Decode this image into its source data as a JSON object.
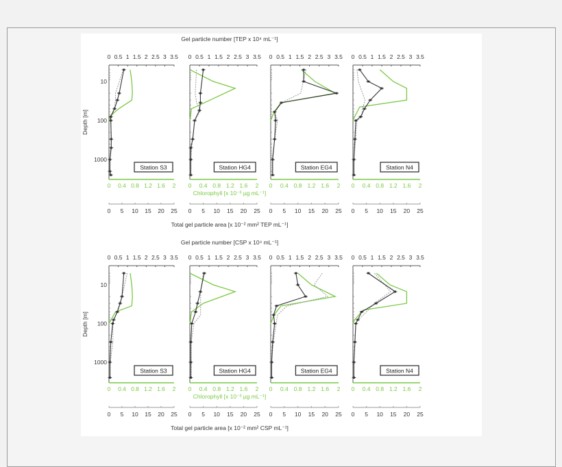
{
  "colors": {
    "number": "#333333",
    "area": "#9a9a9a",
    "chlorophyll": "#7ac943",
    "axis": "#555555"
  },
  "chart_data": [
    {
      "type": "line",
      "title": "",
      "top_axis_label": "Gel particle number [TEP x 10⁴ mL⁻¹]",
      "green_axis_label": "Chlorophyll [x 10⁻³ µg mL⁻¹]",
      "bottom_axis_label": "Total gel particle area [x 10⁻² mm² TEP mL⁻¹]",
      "ylabel": "Depth [m]",
      "yscale": "log",
      "ylim": [
        4.4,
        3000
      ],
      "y_ticks": [
        "10",
        "100",
        "1000"
      ],
      "number_ticks": [
        "0",
        "0.5",
        "1",
        "1.5",
        "2",
        "2.5",
        "3",
        "3.5"
      ],
      "chl_ticks": [
        "0",
        "0.4",
        "0.8",
        "1.2",
        "1.6",
        "2"
      ],
      "area_ticks": [
        "0",
        "5",
        "10",
        "15",
        "20",
        "25"
      ],
      "number_lim": [
        0,
        3.5
      ],
      "chl_lim": [
        0,
        2
      ],
      "area_lim": [
        0,
        25
      ],
      "panels": [
        {
          "station": "Station S3",
          "number": [
            [
              5,
              0.8
            ],
            [
              20,
              0.55
            ],
            [
              30,
              0.45
            ],
            [
              50,
              0.3
            ],
            [
              80,
              0.1
            ],
            [
              100,
              0.1
            ],
            [
              300,
              0.12
            ],
            [
              500,
              0.12
            ],
            [
              1000,
              0.05
            ],
            [
              2000,
              0.05
            ],
            [
              2500,
              0.1
            ]
          ],
          "area": [
            [
              5,
              5.5
            ],
            [
              20,
              2.5
            ],
            [
              30,
              2.5
            ],
            [
              50,
              2
            ],
            [
              80,
              0.5
            ],
            [
              300,
              1
            ],
            [
              1000,
              0.3
            ],
            [
              2500,
              0.3
            ]
          ],
          "chlorophyll": [
            [
              5,
              0.65
            ],
            [
              10,
              0.7
            ],
            [
              20,
              0.72
            ],
            [
              30,
              0.7
            ],
            [
              50,
              0.3
            ],
            [
              75,
              0.05
            ],
            [
              100,
              0
            ]
          ]
        },
        {
          "station": "Station HG4",
          "number": [
            [
              5,
              0.7
            ],
            [
              20,
              0.55
            ],
            [
              35,
              0.55
            ],
            [
              55,
              0.5
            ],
            [
              100,
              0.25
            ],
            [
              300,
              0.15
            ],
            [
              500,
              0.05
            ],
            [
              1000,
              0.05
            ],
            [
              2500,
              0.05
            ]
          ],
          "area": [
            [
              5,
              2.5
            ],
            [
              20,
              2
            ],
            [
              35,
              2.5
            ],
            [
              55,
              4
            ],
            [
              100,
              1.8
            ],
            [
              300,
              1
            ],
            [
              1000,
              0.3
            ],
            [
              2500,
              0.3
            ]
          ],
          "chlorophyll": [
            [
              5,
              0
            ],
            [
              10,
              0.7
            ],
            [
              15,
              1.35
            ],
            [
              30,
              0.6
            ],
            [
              50,
              0.05
            ],
            [
              100,
              0
            ]
          ]
        },
        {
          "station": "Station EG4",
          "number": [
            [
              5,
              1.7
            ],
            [
              10,
              1.7
            ],
            [
              20,
              3.4
            ],
            [
              35,
              0.55
            ],
            [
              60,
              0.2
            ],
            [
              100,
              0.25
            ],
            [
              300,
              0.2
            ],
            [
              1000,
              0.1
            ],
            [
              2500,
              0.1
            ]
          ],
          "area": [
            [
              5,
              13
            ],
            [
              10,
              12
            ],
            [
              20,
              11
            ],
            [
              35,
              4
            ],
            [
              60,
              1.5
            ],
            [
              100,
              2.5
            ],
            [
              300,
              1.5
            ],
            [
              1000,
              0.5
            ],
            [
              2500,
              0.5
            ]
          ],
          "chlorophyll": [
            [
              5,
              0.9
            ],
            [
              10,
              1.3
            ],
            [
              20,
              1.9
            ],
            [
              35,
              0.3
            ],
            [
              60,
              0.1
            ],
            [
              100,
              0
            ]
          ]
        },
        {
          "station": "Station N4",
          "number": [
            [
              5,
              0.35
            ],
            [
              10,
              0.8
            ],
            [
              15,
              1.5
            ],
            [
              30,
              0.9
            ],
            [
              50,
              0.6
            ],
            [
              80,
              0.4
            ],
            [
              100,
              0.15
            ],
            [
              300,
              0.1
            ],
            [
              1000,
              0.05
            ],
            [
              2500,
              0.05
            ]
          ],
          "area": [
            [
              5,
              1.5
            ],
            [
              10,
              2
            ],
            [
              30,
              4.5
            ],
            [
              50,
              3.5
            ],
            [
              80,
              3.5
            ],
            [
              100,
              1.5
            ],
            [
              300,
              1
            ],
            [
              1000,
              0.3
            ],
            [
              2500,
              0.3
            ]
          ],
          "chlorophyll": [
            [
              5,
              0.8
            ],
            [
              10,
              1.2
            ],
            [
              15,
              1.6
            ],
            [
              30,
              1.6
            ],
            [
              45,
              0.2
            ],
            [
              80,
              0.05
            ],
            [
              100,
              0
            ]
          ]
        }
      ]
    },
    {
      "type": "line",
      "title": "",
      "top_axis_label": "Gel particle number [CSP x 10⁴ mL⁻¹]",
      "green_axis_label": "Chlorophyll [x 10⁻³ µg mL⁻¹]",
      "bottom_axis_label": "Total gel particle area [x 10⁻² mm² CSP mL⁻¹]",
      "ylabel": "Depth [m]",
      "yscale": "log",
      "ylim": [
        4.4,
        3000
      ],
      "y_ticks": [
        "10",
        "100",
        "1000"
      ],
      "number_ticks": [
        "0",
        "0.5",
        "1",
        "1.5",
        "2",
        "2.5",
        "3",
        "3.5"
      ],
      "chl_ticks": [
        "0",
        "0.4",
        "0.8",
        "1.2",
        "1.6",
        "2"
      ],
      "area_ticks": [
        "0",
        "5",
        "10",
        "15",
        "20",
        "25"
      ],
      "number_lim": [
        0,
        3.5
      ],
      "chl_lim": [
        0,
        2
      ],
      "area_lim": [
        0,
        25
      ],
      "panels": [
        {
          "station": "Station S3",
          "number": [
            [
              5,
              0.8
            ],
            [
              20,
              0.7
            ],
            [
              30,
              0.6
            ],
            [
              50,
              0.45
            ],
            [
              80,
              0.25
            ],
            [
              100,
              0.2
            ],
            [
              300,
              0.1
            ],
            [
              1000,
              0.05
            ],
            [
              2500,
              0.05
            ]
          ],
          "area": [
            [
              5,
              7
            ],
            [
              20,
              5
            ],
            [
              50,
              3
            ],
            [
              100,
              1.5
            ],
            [
              300,
              1.5
            ],
            [
              1000,
              0.5
            ],
            [
              2500,
              0.5
            ]
          ],
          "chlorophyll": [
            [
              5,
              0.65
            ],
            [
              10,
              0.7
            ],
            [
              20,
              0.72
            ],
            [
              35,
              0.7
            ],
            [
              50,
              0.2
            ],
            [
              100,
              0
            ]
          ]
        },
        {
          "station": "Station HG4",
          "number": [
            [
              5,
              0.75
            ],
            [
              15,
              0.55
            ],
            [
              30,
              0.4
            ],
            [
              50,
              0.3
            ],
            [
              100,
              0.1
            ],
            [
              300,
              0.05
            ],
            [
              1000,
              0.05
            ],
            [
              2500,
              0.05
            ]
          ],
          "area": [
            [
              5,
              5
            ],
            [
              15,
              4
            ],
            [
              30,
              4
            ],
            [
              60,
              4
            ],
            [
              100,
              1.5
            ],
            [
              300,
              0.5
            ],
            [
              2500,
              0.5
            ]
          ],
          "chlorophyll": [
            [
              5,
              0
            ],
            [
              10,
              0.7
            ],
            [
              15,
              1.35
            ],
            [
              30,
              0.4
            ],
            [
              50,
              0.05
            ],
            [
              100,
              0
            ]
          ]
        },
        {
          "station": "Station EG4",
          "number": [
            [
              5,
              1.3
            ],
            [
              10,
              1.4
            ],
            [
              20,
              1.8
            ],
            [
              35,
              0.3
            ],
            [
              60,
              0.15
            ],
            [
              100,
              0.2
            ],
            [
              300,
              0.1
            ],
            [
              1000,
              0.05
            ],
            [
              2500,
              0.05
            ]
          ],
          "area": [
            [
              5,
              19
            ],
            [
              10,
              16
            ],
            [
              20,
              21
            ],
            [
              35,
              6
            ],
            [
              60,
              2.5
            ],
            [
              100,
              2
            ],
            [
              300,
              1
            ],
            [
              1000,
              0.3
            ],
            [
              2500,
              0.3
            ]
          ],
          "chlorophyll": [
            [
              5,
              0.8
            ],
            [
              10,
              1.2
            ],
            [
              20,
              1.9
            ],
            [
              35,
              0.3
            ],
            [
              60,
              0.1
            ],
            [
              100,
              0
            ]
          ]
        },
        {
          "station": "Station N4",
          "number": [
            [
              5,
              0.8
            ],
            [
              15,
              2.2
            ],
            [
              30,
              1.2
            ],
            [
              50,
              0.45
            ],
            [
              80,
              0.25
            ],
            [
              100,
              0.15
            ],
            [
              300,
              0.1
            ],
            [
              1000,
              0.05
            ],
            [
              2500,
              0.05
            ]
          ],
          "area": [
            [
              5,
              8
            ],
            [
              15,
              14
            ],
            [
              30,
              8
            ],
            [
              50,
              5
            ],
            [
              80,
              2
            ],
            [
              100,
              1
            ],
            [
              300,
              0.8
            ],
            [
              1000,
              0.3
            ],
            [
              2500,
              0.3
            ]
          ],
          "chlorophyll": [
            [
              5,
              0.7
            ],
            [
              10,
              1.1
            ],
            [
              15,
              1.6
            ],
            [
              30,
              1.6
            ],
            [
              45,
              0.3
            ],
            [
              80,
              0.05
            ],
            [
              100,
              0
            ]
          ]
        }
      ]
    }
  ]
}
